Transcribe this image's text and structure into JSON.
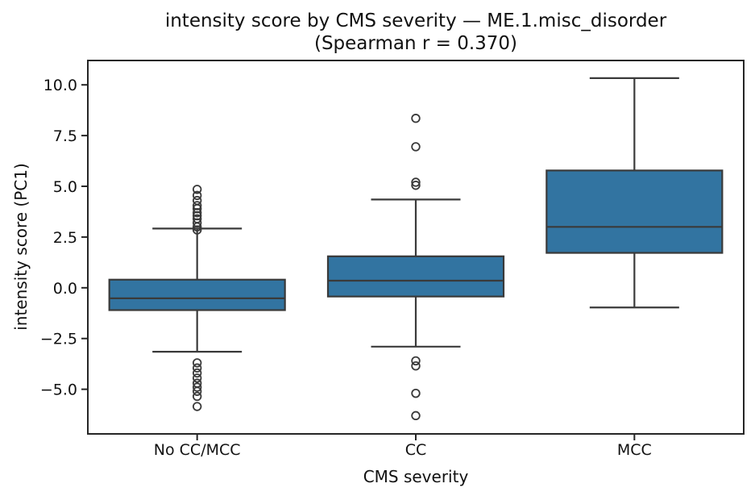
{
  "figure": {
    "title_line1": "intensity score by CMS severity — ME.1.misc_disorder",
    "title_line2": "(Spearman r = 0.370)",
    "xlabel": "CMS severity",
    "ylabel": "intensity score (PC1)",
    "spearman_r": "0.370"
  },
  "chart_data": {
    "type": "box",
    "title": "intensity score by CMS severity — ME.1.misc_disorder (Spearman r = 0.370)",
    "xlabel": "CMS severity",
    "ylabel": "intensity score (PC1)",
    "categories": [
      "No CC/MCC",
      "CC",
      "MCC"
    ],
    "ylim": [
      -7.2,
      11.2
    ],
    "yticks": [
      10.0,
      7.5,
      5.0,
      2.5,
      0.0,
      -2.5,
      -5.0
    ],
    "grid": false,
    "legend": false,
    "colors": {
      "box_fill": "#3274a1",
      "line": "#3a3a3a",
      "spine": "#262626",
      "text": "#111111"
    },
    "boxes": [
      {
        "category": "No CC/MCC",
        "whisker_low": -3.15,
        "q1": -1.1,
        "median": -0.52,
        "q3": 0.4,
        "whisker_high": 2.92,
        "outliers_high": [
          2.85,
          3.0,
          3.2,
          3.4,
          3.55,
          3.7,
          3.9,
          4.05,
          4.3,
          4.55,
          4.85
        ],
        "outliers_low": [
          -3.7,
          -3.95,
          -4.2,
          -4.45,
          -4.7,
          -4.9,
          -5.1,
          -5.35,
          -5.85
        ]
      },
      {
        "category": "CC",
        "whisker_low": -2.9,
        "q1": -0.43,
        "median": 0.35,
        "q3": 1.55,
        "whisker_high": 4.35,
        "outliers_high": [
          5.05,
          5.2,
          6.95,
          8.35
        ],
        "outliers_low": [
          -3.6,
          -3.85,
          -5.2,
          -6.3
        ]
      },
      {
        "category": "MCC",
        "whisker_low": -0.97,
        "q1": 1.72,
        "median": 3.0,
        "q3": 5.78,
        "whisker_high": 10.33,
        "outliers_high": [],
        "outliers_low": []
      }
    ]
  }
}
